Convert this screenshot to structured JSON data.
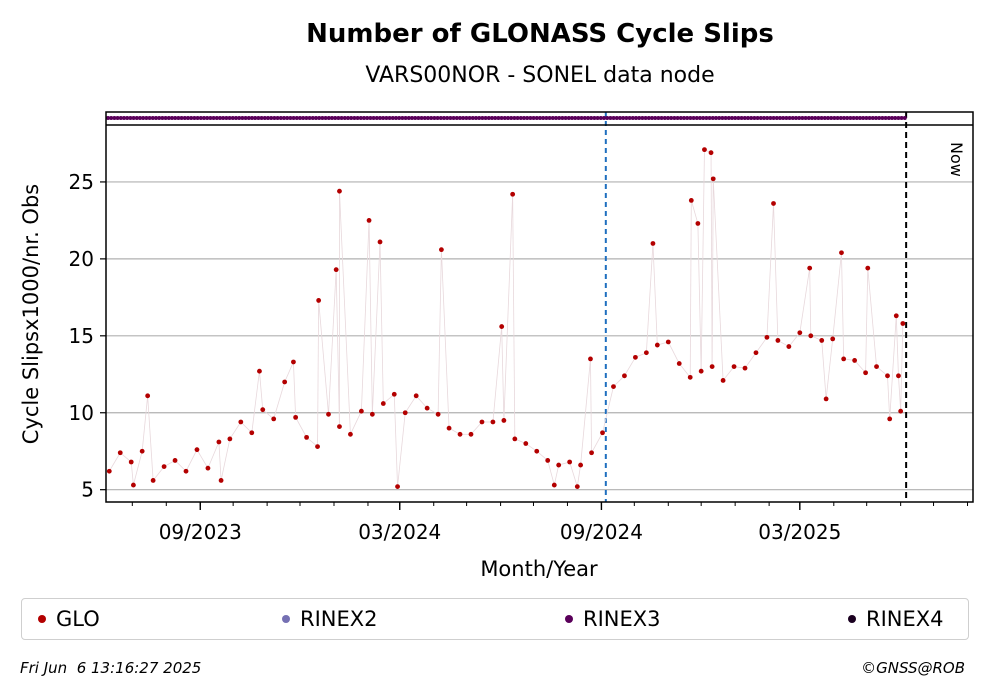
{
  "chart_data": {
    "type": "scatter",
    "title": "Number of GLONASS Cycle Slips",
    "subtitle": "VARS00NOR - SONEL data node",
    "xlabel": "Month/Year",
    "ylabel": "Cycle Slipsx1000/nr. Obs",
    "x_tick_labels": [
      "09/2023",
      "03/2024",
      "09/2024",
      "03/2025"
    ],
    "x_tick_dates": [
      "2023-09-01",
      "2024-03-01",
      "2024-09-01",
      "2025-03-01"
    ],
    "xlim": [
      "2023-06-07",
      "2025-08-06"
    ],
    "y_ticks": [
      5,
      10,
      15,
      20,
      25
    ],
    "ylim": [
      4.2,
      28.7
    ],
    "grid": "horizontal",
    "vline_now_label": "Now",
    "vline_now_date": "2025-06-06",
    "vline_change_date": "2024-09-05",
    "rinex3_span": [
      "2023-06-07",
      "2025-06-05"
    ],
    "series": [
      {
        "name": "GLO",
        "color": "#b30000",
        "points": [
          [
            "2023-06-10",
            6.2
          ],
          [
            "2023-06-20",
            7.4
          ],
          [
            "2023-06-30",
            6.8
          ],
          [
            "2023-07-10",
            7.5
          ],
          [
            "2023-07-20",
            5.6
          ],
          [
            "2023-07-30",
            6.5
          ],
          [
            "2023-08-09",
            6.9
          ],
          [
            "2023-08-19",
            6.2
          ],
          [
            "2023-08-29",
            7.6
          ],
          [
            "2023-09-08",
            6.4
          ],
          [
            "2023-09-18",
            8.1
          ],
          [
            "2023-09-28",
            8.3
          ],
          [
            "2023-10-08",
            9.4
          ],
          [
            "2023-10-18",
            8.7
          ],
          [
            "2023-10-28",
            10.2
          ],
          [
            "2023-11-07",
            9.6
          ],
          [
            "2023-11-17",
            12.0
          ],
          [
            "2023-11-27",
            9.7
          ],
          [
            "2023-12-07",
            8.4
          ],
          [
            "2023-12-17",
            7.8
          ],
          [
            "2023-12-27",
            9.9
          ],
          [
            "2024-01-06",
            9.1
          ],
          [
            "2024-01-16",
            8.6
          ],
          [
            "2024-01-26",
            10.1
          ],
          [
            "2024-02-05",
            9.9
          ],
          [
            "2024-02-15",
            10.6
          ],
          [
            "2024-02-25",
            11.2
          ],
          [
            "2024-03-06",
            10.0
          ],
          [
            "2024-03-16",
            11.1
          ],
          [
            "2024-03-26",
            10.3
          ],
          [
            "2024-04-05",
            9.9
          ],
          [
            "2024-04-15",
            9.0
          ],
          [
            "2024-04-25",
            8.6
          ],
          [
            "2024-05-05",
            8.6
          ],
          [
            "2024-05-15",
            9.4
          ],
          [
            "2024-05-25",
            9.4
          ],
          [
            "2024-06-04",
            9.5
          ],
          [
            "2024-06-14",
            8.3
          ],
          [
            "2024-06-24",
            8.0
          ],
          [
            "2024-07-04",
            7.5
          ],
          [
            "2024-07-14",
            6.9
          ],
          [
            "2024-07-24",
            6.6
          ],
          [
            "2024-08-03",
            6.8
          ],
          [
            "2024-08-13",
            6.6
          ],
          [
            "2024-08-23",
            7.4
          ],
          [
            "2024-09-02",
            8.7
          ],
          [
            "2024-09-12",
            11.7
          ],
          [
            "2024-09-22",
            12.4
          ],
          [
            "2024-10-02",
            13.6
          ],
          [
            "2024-10-12",
            13.9
          ],
          [
            "2024-10-22",
            14.4
          ],
          [
            "2024-11-01",
            14.6
          ],
          [
            "2024-11-11",
            13.2
          ],
          [
            "2024-11-21",
            12.3
          ],
          [
            "2024-12-01",
            12.7
          ],
          [
            "2024-12-11",
            13.0
          ],
          [
            "2024-12-21",
            12.1
          ],
          [
            "2024-12-31",
            13.0
          ],
          [
            "2025-01-10",
            12.9
          ],
          [
            "2025-01-20",
            13.9
          ],
          [
            "2025-01-30",
            14.9
          ],
          [
            "2025-02-09",
            14.7
          ],
          [
            "2025-02-19",
            14.3
          ],
          [
            "2025-03-01",
            15.2
          ],
          [
            "2025-03-11",
            15.0
          ],
          [
            "2025-03-21",
            14.7
          ],
          [
            "2025-03-31",
            14.8
          ],
          [
            "2025-04-10",
            13.5
          ],
          [
            "2025-04-20",
            13.4
          ],
          [
            "2025-04-30",
            12.6
          ],
          [
            "2025-05-10",
            13.0
          ],
          [
            "2025-05-20",
            12.4
          ],
          [
            "2025-05-30",
            12.4
          ],
          [
            "2023-07-15",
            11.1
          ],
          [
            "2023-10-25",
            12.7
          ],
          [
            "2023-11-25",
            13.3
          ],
          [
            "2023-12-18",
            17.3
          ],
          [
            "2024-01-03",
            19.3
          ],
          [
            "2024-01-06",
            24.4
          ],
          [
            "2024-02-02",
            22.5
          ],
          [
            "2024-02-12",
            21.1
          ],
          [
            "2024-04-08",
            20.6
          ],
          [
            "2024-06-12",
            24.2
          ],
          [
            "2024-06-02",
            15.6
          ],
          [
            "2024-08-22",
            13.5
          ],
          [
            "2024-10-18",
            21.0
          ],
          [
            "2024-11-22",
            23.8
          ],
          [
            "2024-11-28",
            22.3
          ],
          [
            "2024-12-04",
            27.1
          ],
          [
            "2024-12-10",
            26.9
          ],
          [
            "2024-12-12",
            25.2
          ],
          [
            "2025-02-05",
            23.6
          ],
          [
            "2025-03-10",
            19.4
          ],
          [
            "2025-04-08",
            20.4
          ],
          [
            "2025-05-02",
            19.4
          ],
          [
            "2025-05-28",
            16.3
          ],
          [
            "2025-06-03",
            15.8
          ],
          [
            "2023-07-02",
            5.3
          ],
          [
            "2023-09-20",
            5.6
          ],
          [
            "2024-02-28",
            5.2
          ],
          [
            "2024-07-20",
            5.3
          ],
          [
            "2024-08-10",
            5.2
          ],
          [
            "2025-06-01",
            10.1
          ],
          [
            "2025-05-22",
            9.6
          ],
          [
            "2025-03-25",
            10.9
          ]
        ]
      }
    ],
    "legend": [
      {
        "label": "GLO",
        "color": "#b30000"
      },
      {
        "label": "RINEX2",
        "color": "#7570b3"
      },
      {
        "label": "RINEX3",
        "color": "#5a005a"
      },
      {
        "label": "RINEX4",
        "color": "#1a0020"
      }
    ]
  },
  "footer": {
    "timestamp": "Fri Jun  6 13:16:27 2025",
    "credit": "©GNSS@ROB"
  }
}
